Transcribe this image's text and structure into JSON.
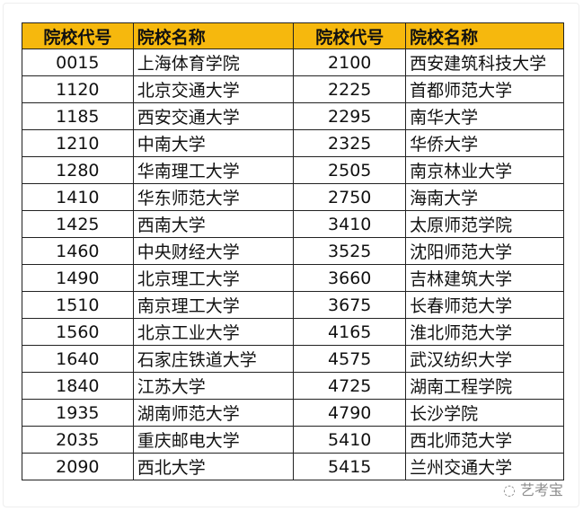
{
  "headers": [
    "院校代号",
    "院校名称",
    "院校代号",
    "院校名称"
  ],
  "rows": [
    [
      "0015",
      "上海体育学院",
      "2100",
      "西安建筑科技大学"
    ],
    [
      "1120",
      "北京交通大学",
      "2225",
      "首都师范大学"
    ],
    [
      "1185",
      "西安交通大学",
      "2295",
      "南华大学"
    ],
    [
      "1210",
      "中南大学",
      "2325",
      "华侨大学"
    ],
    [
      "1280",
      "华南理工大学",
      "2505",
      "南京林业大学"
    ],
    [
      "1410",
      "华东师范大学",
      "2750",
      "海南大学"
    ],
    [
      "1425",
      "西南大学",
      "3410",
      "太原师范学院"
    ],
    [
      "1460",
      "中央财经大学",
      "3525",
      "沈阳师范大学"
    ],
    [
      "1490",
      "北京理工大学",
      "3660",
      "吉林建筑大学"
    ],
    [
      "1510",
      "南京理工大学",
      "3675",
      "长春师范大学"
    ],
    [
      "1560",
      "北京工业大学",
      "4165",
      "淮北师范大学"
    ],
    [
      "1640",
      "石家庄铁道大学",
      "4575",
      "武汉纺织大学"
    ],
    [
      "1840",
      "江苏大学",
      "4725",
      "湖南工程学院"
    ],
    [
      "1935",
      "湖南师范大学",
      "4790",
      "长沙学院"
    ],
    [
      "2035",
      "重庆邮电大学",
      "5410",
      "西北师范大学"
    ],
    [
      "2090",
      "西北大学",
      "5415",
      "兰州交通大学"
    ]
  ],
  "watermark": "艺考宝",
  "colors": {
    "header_bg": "#f6b80d"
  }
}
